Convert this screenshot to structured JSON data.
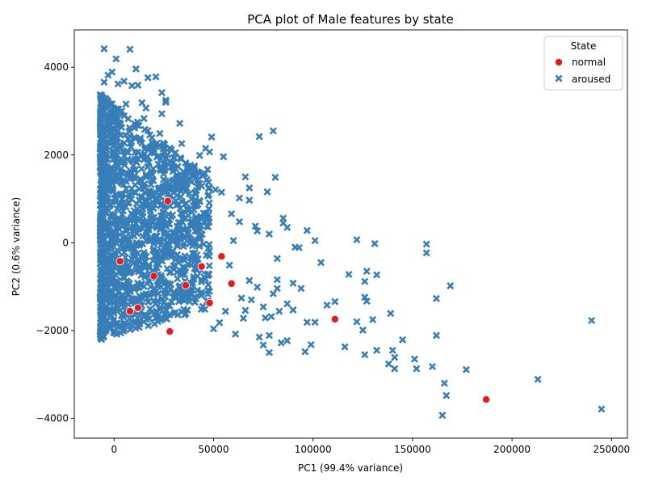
{
  "chart_data": {
    "type": "scatter",
    "title": "PCA plot of Male features by state",
    "xlabel": "PC1 (99.4% variance)",
    "ylabel": "PC2 (0.6% variance)",
    "xlim": [
      -20000,
      258000
    ],
    "ylim": [
      -4450,
      4850
    ],
    "xticks": [
      0,
      50000,
      100000,
      150000,
      200000,
      250000
    ],
    "yticks": [
      -4000,
      -2000,
      0,
      2000,
      4000
    ],
    "grid": false,
    "legend": {
      "title": "State",
      "position": "top-right"
    },
    "series": [
      {
        "name": "normal",
        "marker": "circle",
        "color": "#e41a1c",
        "points": [
          [
            28000,
            -2020
          ],
          [
            59000,
            -930
          ],
          [
            48000,
            -1370
          ],
          [
            111000,
            -1740
          ],
          [
            187000,
            -3570
          ],
          [
            8000,
            -1560
          ],
          [
            36000,
            -970
          ],
          [
            54000,
            -310
          ],
          [
            27000,
            950
          ],
          [
            12000,
            -1480
          ],
          [
            3000,
            -420
          ],
          [
            20000,
            -760
          ],
          [
            44000,
            -540
          ]
        ]
      },
      {
        "name": "aroused",
        "marker": "x",
        "color": "#377eb8",
        "points": [
          [
            245000,
            -3790
          ],
          [
            240000,
            -1770
          ],
          [
            213000,
            -3110
          ],
          [
            177000,
            -2890
          ],
          [
            169000,
            -980
          ],
          [
            167000,
            -3480
          ],
          [
            166000,
            -3200
          ],
          [
            165000,
            -3930
          ],
          [
            162000,
            -1270
          ],
          [
            162000,
            -2110
          ],
          [
            160000,
            -2820
          ],
          [
            157000,
            -30
          ],
          [
            157000,
            -230
          ],
          [
            152000,
            -2870
          ],
          [
            151000,
            -2650
          ],
          [
            145000,
            -2210
          ],
          [
            141000,
            -2870
          ],
          [
            141000,
            -2610
          ],
          [
            140000,
            -2450
          ],
          [
            139000,
            -1610
          ],
          [
            138000,
            -2760
          ],
          [
            132000,
            -2450
          ],
          [
            132000,
            -730
          ],
          [
            131000,
            -20
          ],
          [
            130000,
            -1750
          ],
          [
            127000,
            -1330
          ],
          [
            127000,
            -650
          ],
          [
            126000,
            -880
          ],
          [
            126000,
            -1240
          ],
          [
            126000,
            -2550
          ],
          [
            125000,
            -1990
          ],
          [
            122000,
            -1800
          ],
          [
            122000,
            70
          ],
          [
            118000,
            -720
          ],
          [
            116000,
            -2370
          ],
          [
            111000,
            -1340
          ],
          [
            107000,
            -1420
          ],
          [
            104000,
            -450
          ],
          [
            101000,
            -1810
          ],
          [
            101000,
            50
          ],
          [
            99000,
            -2320
          ],
          [
            97000,
            -1810
          ],
          [
            97000,
            280
          ],
          [
            96000,
            -2480
          ],
          [
            94000,
            -1040
          ],
          [
            93000,
            -110
          ],
          [
            91000,
            -100
          ],
          [
            90000,
            -1530
          ],
          [
            90000,
            -920
          ],
          [
            87000,
            350
          ],
          [
            87000,
            -2230
          ],
          [
            87000,
            -1390
          ],
          [
            85000,
            450
          ],
          [
            85000,
            560
          ],
          [
            84000,
            -2280
          ],
          [
            83000,
            -1560
          ],
          [
            82000,
            -360
          ],
          [
            82000,
            -840
          ],
          [
            82000,
            -1040
          ],
          [
            81000,
            1490
          ],
          [
            80000,
            2550
          ],
          [
            80000,
            -1160
          ],
          [
            79000,
            -1680
          ],
          [
            78000,
            200
          ],
          [
            78000,
            -2110
          ],
          [
            78000,
            -2500
          ],
          [
            77000,
            1160
          ],
          [
            76000,
            -1710
          ],
          [
            75000,
            -2330
          ],
          [
            75000,
            -1460
          ],
          [
            73000,
            2420
          ],
          [
            73000,
            -2150
          ],
          [
            72000,
            -1010
          ],
          [
            72000,
            270
          ],
          [
            71000,
            380
          ],
          [
            69000,
            -1300
          ],
          [
            68000,
            -860
          ],
          [
            68000,
            970
          ],
          [
            68000,
            1250
          ],
          [
            66000,
            1500
          ],
          [
            66000,
            -1540
          ],
          [
            65000,
            -1720
          ],
          [
            64000,
            -1260
          ],
          [
            63000,
            480
          ],
          [
            63000,
            1020
          ],
          [
            61000,
            -2080
          ],
          [
            60000,
            50
          ],
          [
            59000,
            660
          ],
          [
            58000,
            -510
          ],
          [
            56000,
            -1560
          ],
          [
            55000,
            1960
          ],
          [
            54000,
            1150
          ],
          [
            53000,
            -1820
          ],
          [
            51000,
            1210
          ],
          [
            50000,
            -1960
          ],
          [
            49000,
            2410
          ],
          [
            48000,
            2070
          ],
          [
            47000,
            1670
          ],
          [
            46000,
            2150
          ],
          [
            44000,
            1290
          ],
          [
            43000,
            1990
          ],
          [
            42000,
            1620
          ],
          [
            40000,
            1520
          ],
          [
            36000,
            1820
          ],
          [
            34000,
            2260
          ],
          [
            33000,
            2720
          ],
          [
            31000,
            1450
          ],
          [
            30000,
            1940
          ],
          [
            28000,
            1860
          ],
          [
            26000,
            3250
          ],
          [
            26000,
            3200
          ],
          [
            24000,
            2940
          ],
          [
            24000,
            3420
          ],
          [
            23000,
            2490
          ],
          [
            21000,
            3780
          ],
          [
            19000,
            2390
          ],
          [
            17000,
            3760
          ],
          [
            16000,
            3070
          ],
          [
            15000,
            2830
          ],
          [
            14000,
            3190
          ],
          [
            12000,
            3590
          ],
          [
            11000,
            3960
          ],
          [
            9000,
            3580
          ],
          [
            8000,
            4410
          ],
          [
            6000,
            3160
          ],
          [
            5000,
            3680
          ],
          [
            2000,
            3620
          ],
          [
            1000,
            4190
          ],
          [
            -1000,
            3890
          ],
          [
            -3000,
            3820
          ],
          [
            -5000,
            4420
          ],
          [
            -5000,
            3660
          ],
          [
            -7000,
            3370
          ]
        ],
        "cluster": {
          "note": "dense overlapping markers",
          "pc1_range": [
            -7000,
            48000
          ],
          "pc2_range": [
            -2200,
            3400
          ]
        }
      }
    ]
  }
}
